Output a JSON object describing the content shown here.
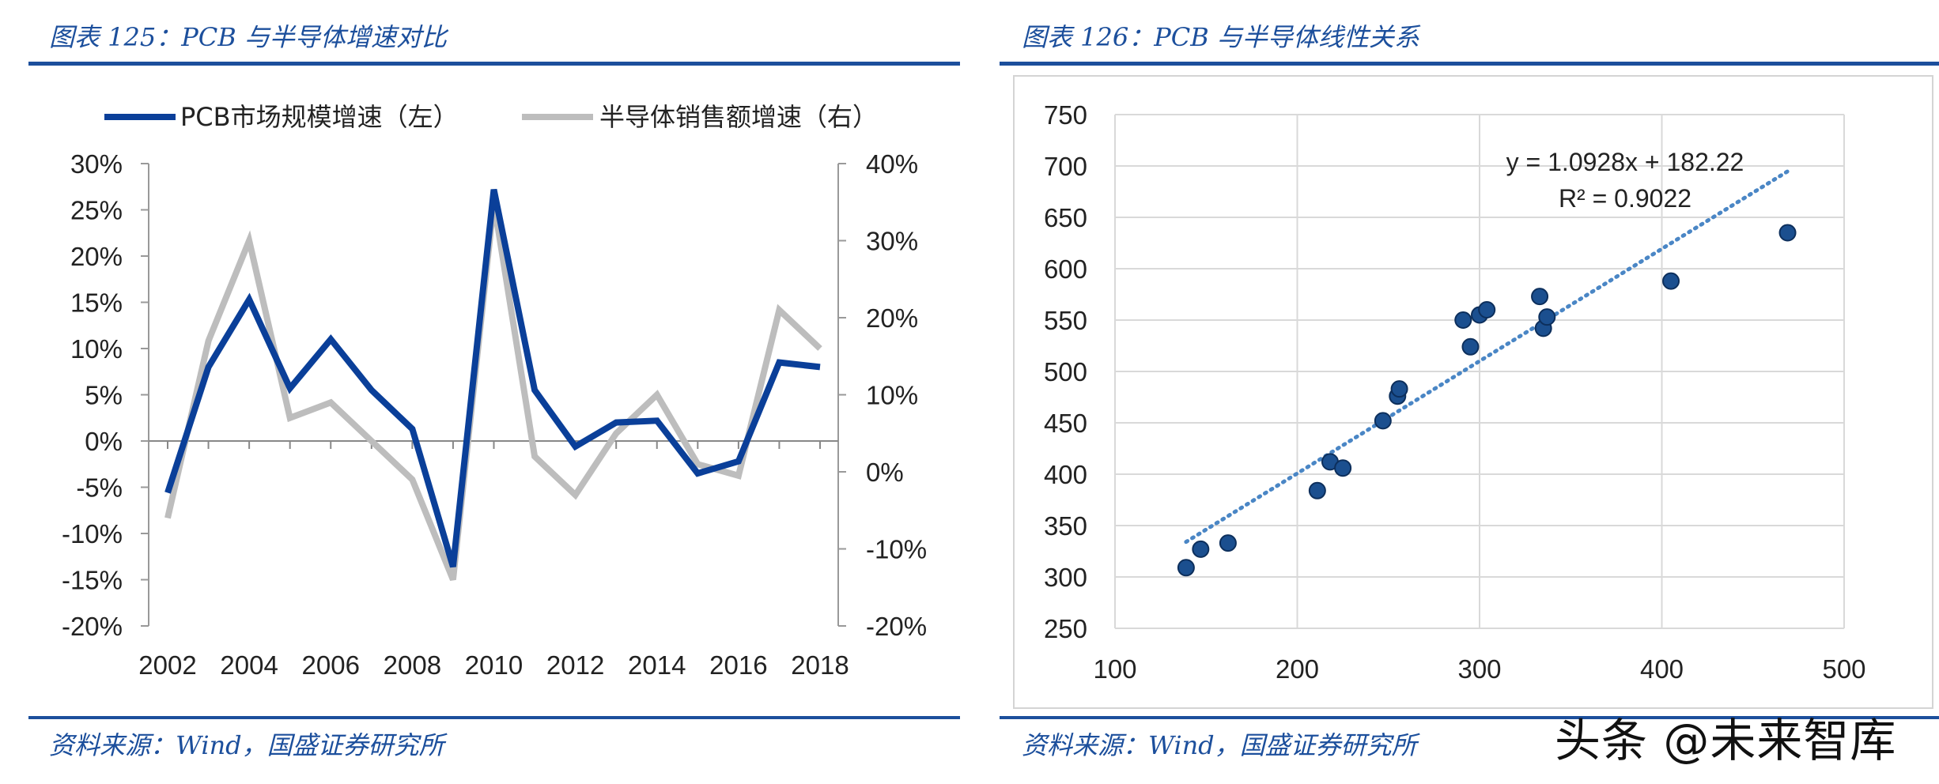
{
  "figures": {
    "left": {
      "title": "图表 125：PCB 与半导体增速对比",
      "source": "资料来源：Wind，国盛证券研究所"
    },
    "right": {
      "title": "图表 126：PCB 与半导体线性关系",
      "source": "资料来源：Wind，国盛证券研究所"
    }
  },
  "watermark": "头条 @未来智库",
  "colors": {
    "accent": "#1c4f9c",
    "pcb_line": "#0a3f99",
    "semi_line": "#bdbdbd",
    "trend": "#4a86c5",
    "point": "#1b4f8f"
  },
  "chart_data": [
    {
      "type": "line",
      "title": "图表 125：PCB 与半导体增速对比",
      "x": [
        "2002",
        "2003",
        "2004",
        "2005",
        "2006",
        "2007",
        "2008",
        "2009",
        "2010",
        "2011",
        "2012",
        "2013",
        "2014",
        "2015",
        "2016",
        "2017",
        "2018"
      ],
      "x_tick_labels": [
        "2002",
        "2004",
        "2006",
        "2008",
        "2010",
        "2012",
        "2014",
        "2016",
        "2018"
      ],
      "y_left": {
        "ylim": [
          -20,
          30
        ],
        "ticks": [
          "30%",
          "25%",
          "20%",
          "15%",
          "10%",
          "5%",
          "0%",
          "-5%",
          "-10%",
          "-15%",
          "-20%"
        ]
      },
      "y_right": {
        "ylim": [
          -20,
          40
        ],
        "ticks": [
          "40%",
          "30%",
          "20%",
          "10%",
          "0%",
          "-10%",
          "-20%"
        ]
      },
      "series": [
        {
          "name": "PCB市场规模增速（左）",
          "axis": "left",
          "color": "#0a3f99",
          "values": [
            -5.6,
            8.0,
            15.3,
            5.7,
            11.0,
            5.5,
            1.3,
            -13.6,
            27.2,
            5.5,
            -0.6,
            2.0,
            2.2,
            -3.5,
            -2.2,
            8.5,
            8.0
          ]
        },
        {
          "name": "半导体销售额增速（右）",
          "axis": "right",
          "color": "#bdbdbd",
          "values": [
            -6.0,
            17.0,
            30.0,
            7.0,
            9.0,
            4.0,
            -1.0,
            -14.0,
            35.0,
            2.0,
            -3.0,
            5.0,
            10.0,
            1.0,
            -0.5,
            21.0,
            16.0
          ]
        }
      ]
    },
    {
      "type": "scatter",
      "title": "图表 126：PCB 与半导体线性关系",
      "xlim": [
        100,
        500
      ],
      "ylim": [
        250,
        750
      ],
      "x_ticks": [
        "100",
        "200",
        "300",
        "400",
        "500"
      ],
      "y_ticks": [
        "750",
        "700",
        "650",
        "600",
        "550",
        "500",
        "450",
        "400",
        "350",
        "300",
        "250"
      ],
      "grid": true,
      "points": [
        [
          139,
          309
        ],
        [
          147,
          327
        ],
        [
          162,
          333
        ],
        [
          211,
          384
        ],
        [
          218,
          412
        ],
        [
          225,
          406
        ],
        [
          247,
          452
        ],
        [
          255,
          476
        ],
        [
          256,
          483
        ],
        [
          291,
          550
        ],
        [
          295,
          524
        ],
        [
          300,
          555
        ],
        [
          304,
          560
        ],
        [
          333,
          573
        ],
        [
          335,
          542
        ],
        [
          337,
          553
        ],
        [
          405,
          588
        ],
        [
          469,
          635
        ]
      ],
      "trendline": {
        "type": "linear",
        "slope": 1.0928,
        "intercept": 182.22,
        "x_range": [
          139,
          469
        ],
        "equation": "y = 1.0928x + 182.22",
        "r_squared": "R² = 0.9022"
      }
    }
  ]
}
